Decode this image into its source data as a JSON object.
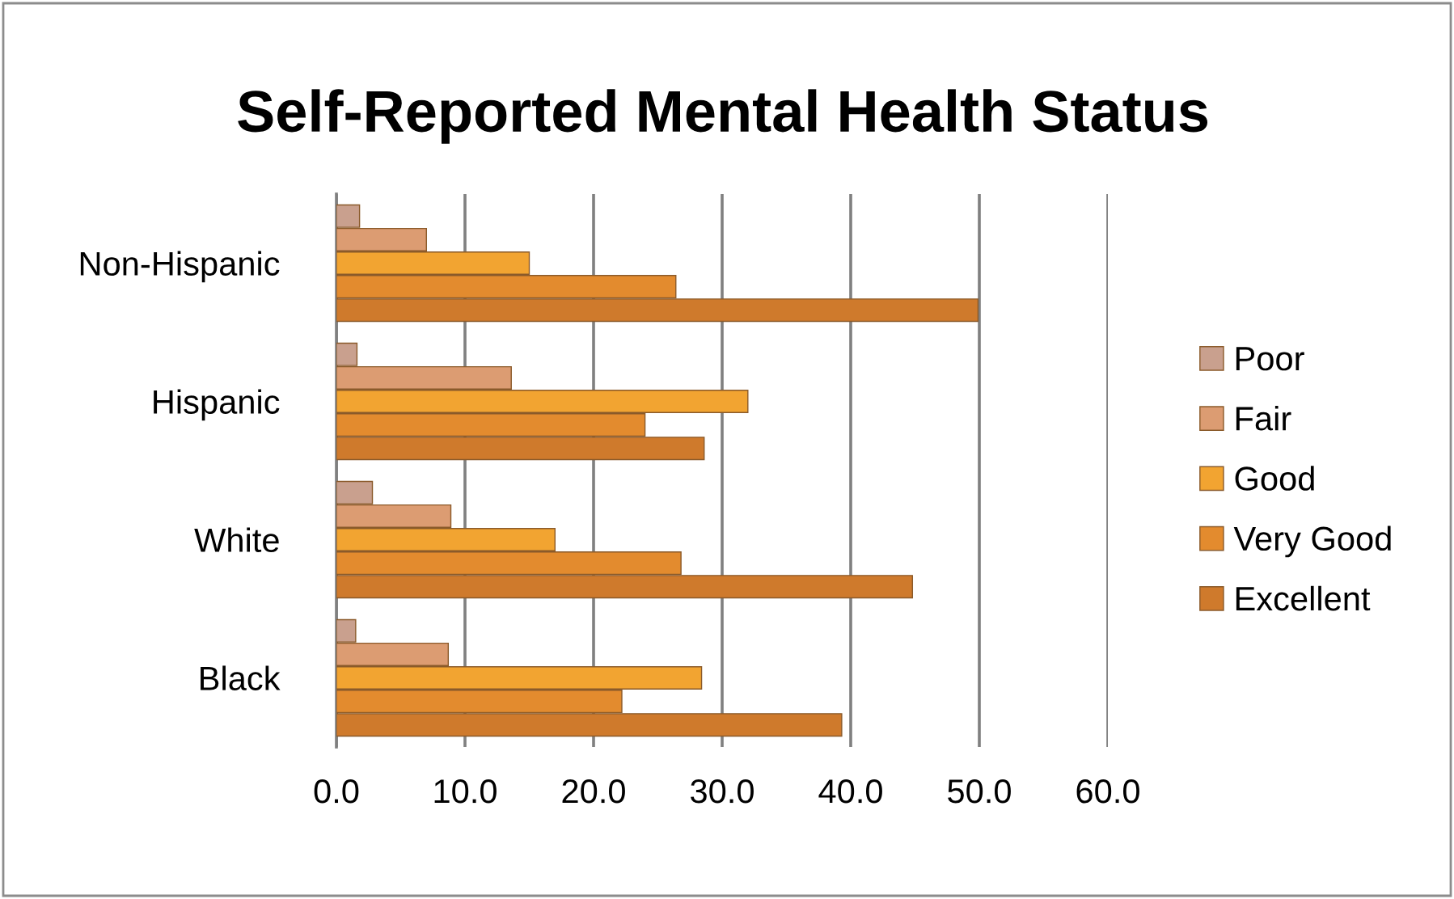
{
  "chart_data": {
    "type": "bar",
    "orientation": "horizontal",
    "title": "Self-Reported Mental Health Status",
    "categories": [
      "Non-Hispanic",
      "Hispanic",
      "White",
      "Black"
    ],
    "series": [
      {
        "name": "Poor",
        "color": "#c9a08e",
        "values": [
          1.8,
          1.6,
          2.8,
          1.5
        ]
      },
      {
        "name": "Fair",
        "color": "#dc9c72",
        "values": [
          7.0,
          13.6,
          8.9,
          8.7
        ]
      },
      {
        "name": "Good",
        "color": "#f2a431",
        "values": [
          15.0,
          32.0,
          17.0,
          28.4
        ]
      },
      {
        "name": "Very Good",
        "color": "#e38b2e",
        "values": [
          26.4,
          24.0,
          26.8,
          22.2
        ]
      },
      {
        "name": "Excellent",
        "color": "#cf7a2c",
        "values": [
          49.9,
          28.6,
          44.8,
          39.3
        ]
      }
    ],
    "xlim": [
      0,
      60
    ],
    "xticks": [
      {
        "value": 0,
        "label": "0.0"
      },
      {
        "value": 10,
        "label": "10.0"
      },
      {
        "value": 20,
        "label": "20.0"
      },
      {
        "value": 30,
        "label": "30.0"
      },
      {
        "value": 40,
        "label": "40.0"
      },
      {
        "value": 50,
        "label": "50.0"
      },
      {
        "value": 60,
        "label": "60.0"
      }
    ],
    "grid": "x",
    "legend": "right"
  }
}
